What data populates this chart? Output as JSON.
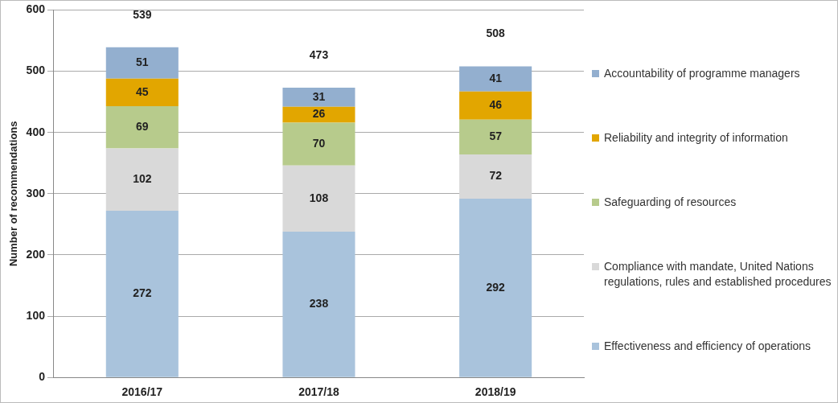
{
  "chart_data": {
    "type": "bar",
    "stacked": true,
    "ylabel": "Number of recommendations",
    "categories": [
      "2016/17",
      "2017/18",
      "2018/19"
    ],
    "series": [
      {
        "name": "Effectiveness and efficiency of operations",
        "color": "#a9c3dc",
        "values": [
          272,
          238,
          292
        ]
      },
      {
        "name": "Compliance with mandate, United Nations regulations, rules and established procedures",
        "color": "#d9d9d9",
        "values": [
          102,
          108,
          72
        ]
      },
      {
        "name": "Safeguarding of resources",
        "color": "#b7cb8c",
        "values": [
          69,
          70,
          57
        ]
      },
      {
        "name": "Reliability and integrity of information",
        "color": "#e2a600",
        "values": [
          45,
          26,
          46
        ]
      },
      {
        "name": "Accountability of programme managers",
        "color": "#93afcf",
        "values": [
          51,
          31,
          41
        ]
      }
    ],
    "totals": [
      "539",
      "473",
      "508"
    ],
    "data_labels": true,
    "ylim": [
      0,
      600
    ],
    "yticks": [
      0,
      100,
      200,
      300,
      400,
      500,
      600
    ],
    "grid": "y",
    "legend": "right"
  }
}
